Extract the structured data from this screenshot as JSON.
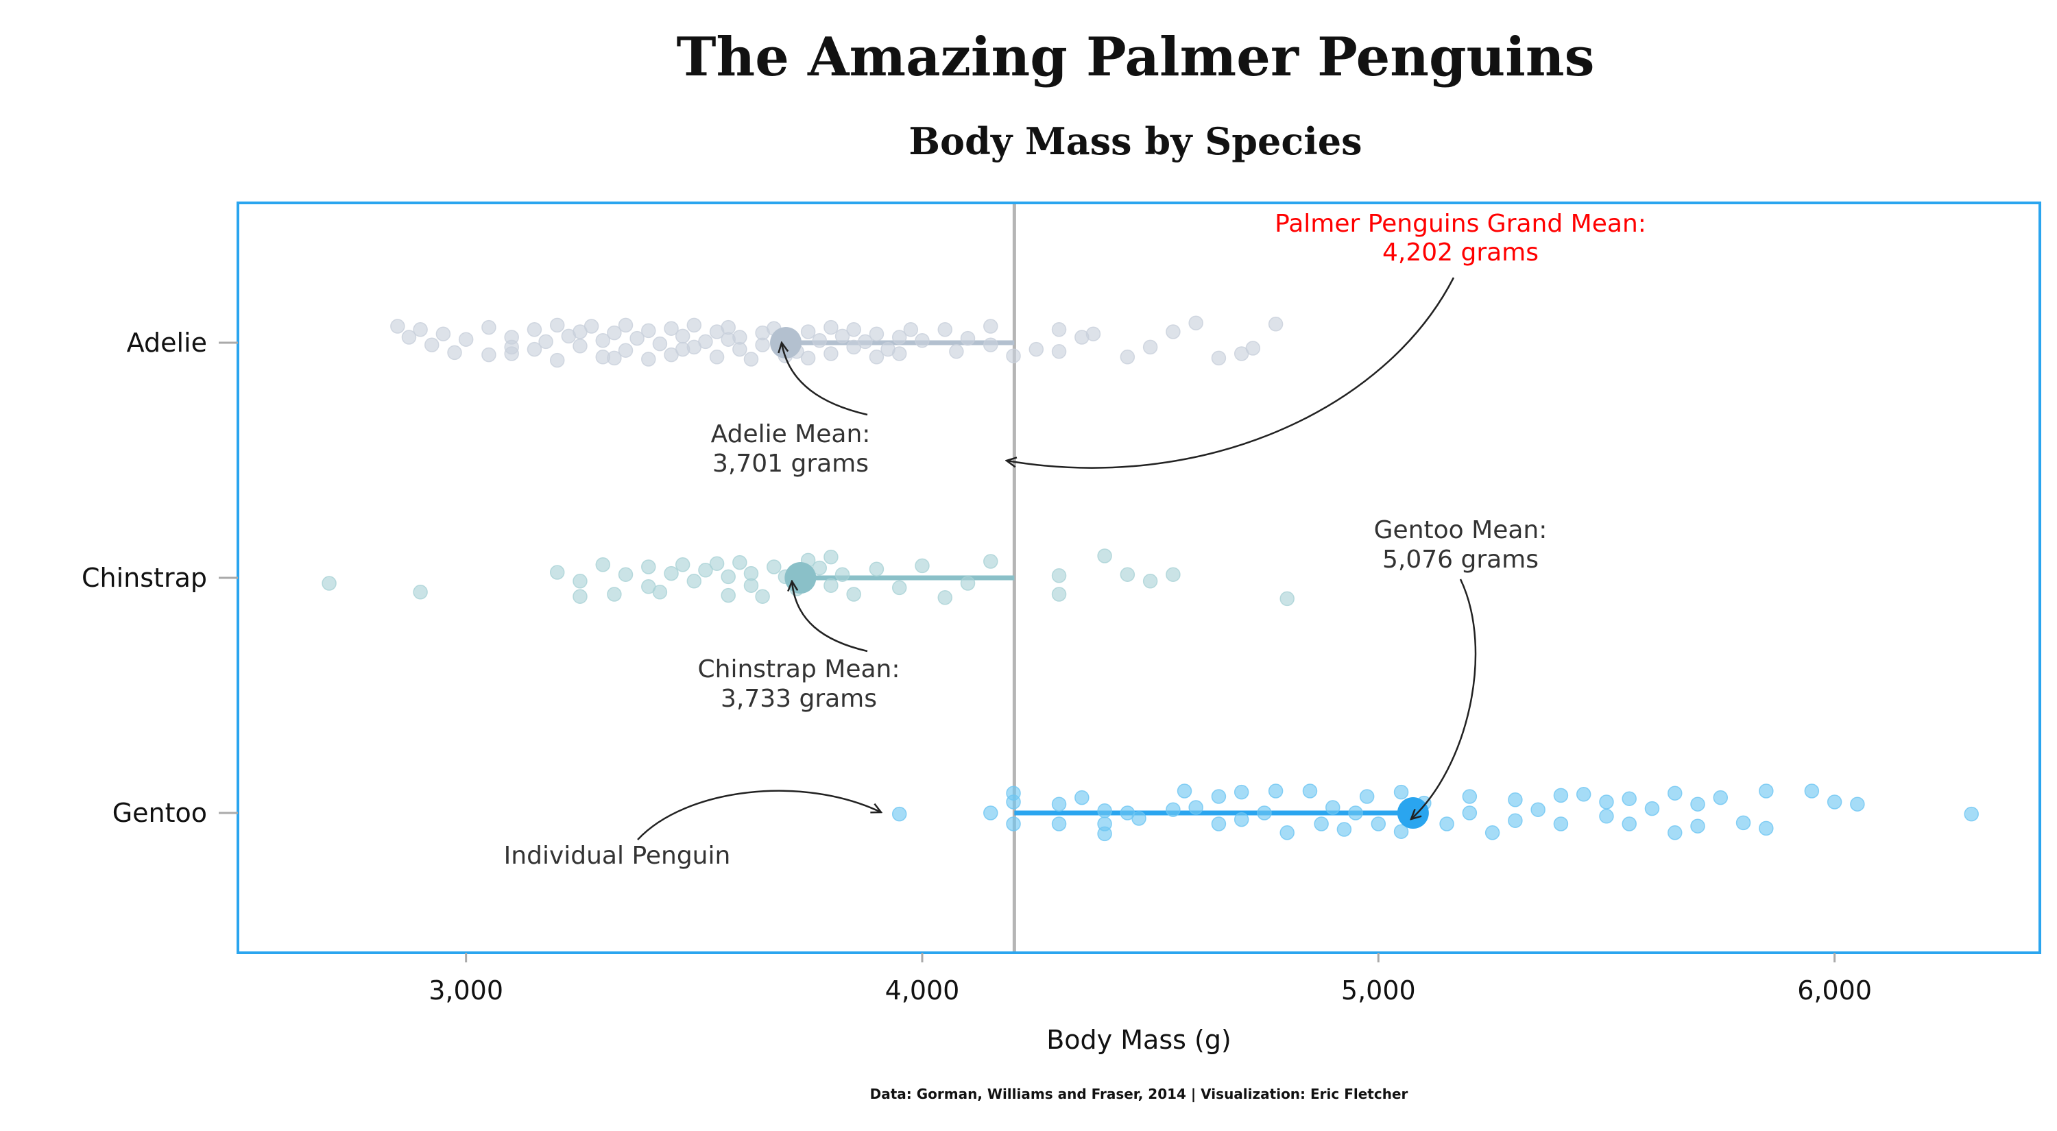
{
  "chart_data": {
    "type": "scatter",
    "title": "The Amazing Palmer Penguins",
    "subtitle": "Body Mass by Species",
    "xlabel": "Body Mass (g)",
    "ylabel": "",
    "xlim": [
      2500,
      6450
    ],
    "x_ticks": [
      3000,
      4000,
      5000,
      6000
    ],
    "x_tick_labels": [
      "3,000",
      "4,000",
      "5,000",
      "6,000"
    ],
    "categories": [
      "Adelie",
      "Chinstrap",
      "Gentoo"
    ],
    "grid": false,
    "colors": {
      "Adelie": "#c8d0db",
      "Chinstrap": "#a9d2d6",
      "Gentoo": "#6ec6f2",
      "Adelie_mean": "#b3c0cf",
      "Chinstrap_mean": "#8ac0c8",
      "Gentoo_mean": "#2aa5ef",
      "grand_mean_line": "#b5b5b5",
      "grand_mean_label": "#ff0000",
      "frame": "#2aa5ef"
    },
    "grand_mean": 4202,
    "grand_mean_label": [
      "Palmer Penguins Grand Mean:",
      "4,202 grams"
    ],
    "series": [
      {
        "name": "Adelie",
        "mean": 3701,
        "mean_label": [
          "Adelie Mean:",
          "3,701 grams"
        ],
        "points": [
          [
            2850,
            0.15
          ],
          [
            2875,
            0.05
          ],
          [
            2900,
            0.12
          ],
          [
            2925,
            -0.02
          ],
          [
            2950,
            0.08
          ],
          [
            2975,
            -0.09
          ],
          [
            3000,
            0.03
          ],
          [
            3050,
            -0.11
          ],
          [
            3050,
            0.14
          ],
          [
            3100,
            0.05
          ],
          [
            3100,
            -0.1
          ],
          [
            3150,
            0.12
          ],
          [
            3150,
            -0.06
          ],
          [
            3175,
            0.01
          ],
          [
            3200,
            0.16
          ],
          [
            3200,
            -0.16
          ],
          [
            3225,
            0.06
          ],
          [
            3250,
            -0.03
          ],
          [
            3250,
            0.1
          ],
          [
            3275,
            0.15
          ],
          [
            3300,
            -0.13
          ],
          [
            3300,
            0.02
          ],
          [
            3325,
            0.09
          ],
          [
            3350,
            -0.07
          ],
          [
            3350,
            0.16
          ],
          [
            3375,
            0.04
          ],
          [
            3400,
            -0.15
          ],
          [
            3400,
            0.11
          ],
          [
            3425,
            -0.01
          ],
          [
            3450,
            0.13
          ],
          [
            3450,
            -0.11
          ],
          [
            3475,
            0.06
          ],
          [
            3500,
            -0.04
          ],
          [
            3500,
            0.16
          ],
          [
            3525,
            0.01
          ],
          [
            3550,
            -0.13
          ],
          [
            3550,
            0.1
          ],
          [
            3575,
            0.14
          ],
          [
            3600,
            -0.06
          ],
          [
            3600,
            0.05
          ],
          [
            3625,
            -0.15
          ],
          [
            3650,
            0.09
          ],
          [
            3650,
            -0.02
          ],
          [
            3675,
            0.13
          ],
          [
            3700,
            -0.12
          ],
          [
            3700,
            0.04
          ],
          [
            3725,
            -0.08
          ],
          [
            3750,
            0.1
          ],
          [
            3750,
            -0.14
          ],
          [
            3775,
            0.02
          ],
          [
            3800,
            0.14
          ],
          [
            3800,
            -0.1
          ],
          [
            3825,
            0.06
          ],
          [
            3850,
            -0.04
          ],
          [
            3850,
            0.12
          ],
          [
            3875,
            0.01
          ],
          [
            3900,
            -0.13
          ],
          [
            3900,
            0.08
          ],
          [
            3925,
            -0.06
          ],
          [
            3950,
            0.05
          ],
          [
            3950,
            -0.1
          ],
          [
            3975,
            0.12
          ],
          [
            4000,
            0.02
          ],
          [
            4050,
            0.12
          ],
          [
            4075,
            -0.08
          ],
          [
            4100,
            0.04
          ],
          [
            4150,
            0.15
          ],
          [
            4150,
            -0.02
          ],
          [
            4200,
            -0.12
          ],
          [
            4250,
            -0.06
          ],
          [
            4300,
            0.12
          ],
          [
            4300,
            -0.08
          ],
          [
            4350,
            0.05
          ],
          [
            4375,
            0.08
          ],
          [
            4450,
            -0.13
          ],
          [
            4500,
            -0.04
          ],
          [
            4550,
            0.1
          ],
          [
            4600,
            0.18
          ],
          [
            4650,
            -0.14
          ],
          [
            4700,
            -0.1
          ],
          [
            4725,
            -0.05
          ],
          [
            4775,
            0.17
          ],
          [
            3100,
            -0.04
          ],
          [
            3325,
            -0.14
          ],
          [
            3475,
            -0.06
          ],
          [
            3575,
            0.03
          ]
        ]
      },
      {
        "name": "Chinstrap",
        "mean": 3733,
        "mean_label": [
          "Chinstrap Mean:",
          "3,733 grams"
        ],
        "points": [
          [
            2700,
            -0.05
          ],
          [
            2900,
            -0.13
          ],
          [
            3200,
            0.05
          ],
          [
            3250,
            -0.03
          ],
          [
            3250,
            -0.17
          ],
          [
            3300,
            0.12
          ],
          [
            3325,
            -0.15
          ],
          [
            3350,
            0.03
          ],
          [
            3400,
            0.1
          ],
          [
            3400,
            -0.08
          ],
          [
            3425,
            -0.13
          ],
          [
            3450,
            0.04
          ],
          [
            3475,
            0.12
          ],
          [
            3500,
            -0.03
          ],
          [
            3525,
            0.07
          ],
          [
            3550,
            0.13
          ],
          [
            3575,
            -0.16
          ],
          [
            3575,
            0.01
          ],
          [
            3600,
            0.14
          ],
          [
            3625,
            0.04
          ],
          [
            3650,
            -0.17
          ],
          [
            3675,
            0.1
          ],
          [
            3700,
            0.01
          ],
          [
            3725,
            -0.1
          ],
          [
            3750,
            0.16
          ],
          [
            3775,
            0.09
          ],
          [
            3800,
            -0.07
          ],
          [
            3800,
            0.19
          ],
          [
            3825,
            0.03
          ],
          [
            3850,
            -0.15
          ],
          [
            3900,
            0.08
          ],
          [
            3950,
            -0.09
          ],
          [
            4000,
            0.11
          ],
          [
            4050,
            -0.18
          ],
          [
            4100,
            -0.05
          ],
          [
            4150,
            0.15
          ],
          [
            4300,
            0.02
          ],
          [
            4300,
            -0.15
          ],
          [
            4400,
            0.2
          ],
          [
            4450,
            0.03
          ],
          [
            4500,
            -0.03
          ],
          [
            4550,
            0.03
          ],
          [
            4800,
            -0.19
          ],
          [
            3625,
            -0.07
          ]
        ]
      },
      {
        "name": "Gentoo",
        "mean": 5076,
        "mean_label": [
          "Gentoo Mean:",
          "5,076 grams"
        ],
        "points": [
          [
            3950,
            -0.01
          ],
          [
            4150,
            0.0
          ],
          [
            4200,
            0.18
          ],
          [
            4200,
            0.1
          ],
          [
            4200,
            -0.1
          ],
          [
            4300,
            0.08
          ],
          [
            4300,
            -0.1
          ],
          [
            4350,
            0.14
          ],
          [
            4400,
            0.02
          ],
          [
            4400,
            -0.1
          ],
          [
            4400,
            -0.19
          ],
          [
            4450,
            0.0
          ],
          [
            4475,
            -0.05
          ],
          [
            4550,
            0.03
          ],
          [
            4575,
            0.2
          ],
          [
            4600,
            0.05
          ],
          [
            4650,
            0.15
          ],
          [
            4650,
            -0.1
          ],
          [
            4700,
            0.19
          ],
          [
            4700,
            -0.06
          ],
          [
            4750,
            0.0
          ],
          [
            4775,
            0.2
          ],
          [
            4800,
            -0.18
          ],
          [
            4850,
            0.2
          ],
          [
            4875,
            -0.1
          ],
          [
            4900,
            0.05
          ],
          [
            4925,
            -0.15
          ],
          [
            4950,
            0.0
          ],
          [
            4975,
            0.15
          ],
          [
            5000,
            -0.1
          ],
          [
            5050,
            0.19
          ],
          [
            5050,
            -0.17
          ],
          [
            5100,
            0.09
          ],
          [
            5150,
            -0.1
          ],
          [
            5200,
            0.15
          ],
          [
            5200,
            0.0
          ],
          [
            5250,
            -0.18
          ],
          [
            5300,
            0.12
          ],
          [
            5300,
            -0.07
          ],
          [
            5350,
            0.03
          ],
          [
            5400,
            0.16
          ],
          [
            5400,
            -0.1
          ],
          [
            5450,
            0.17
          ],
          [
            5500,
            -0.03
          ],
          [
            5500,
            0.1
          ],
          [
            5550,
            0.13
          ],
          [
            5550,
            -0.1
          ],
          [
            5600,
            0.04
          ],
          [
            5650,
            0.18
          ],
          [
            5650,
            -0.18
          ],
          [
            5700,
            0.08
          ],
          [
            5700,
            -0.12
          ],
          [
            5750,
            0.14
          ],
          [
            5800,
            -0.09
          ],
          [
            5850,
            0.2
          ],
          [
            5850,
            -0.14
          ],
          [
            5950,
            0.2
          ],
          [
            6000,
            0.1
          ],
          [
            6050,
            0.08
          ],
          [
            6300,
            -0.01
          ]
        ]
      }
    ],
    "annotations": {
      "individual": "Individual Penguin"
    },
    "caption": "Data: Gorman, Williams and Fraser, 2014 | Visualization: Eric Fletcher"
  }
}
